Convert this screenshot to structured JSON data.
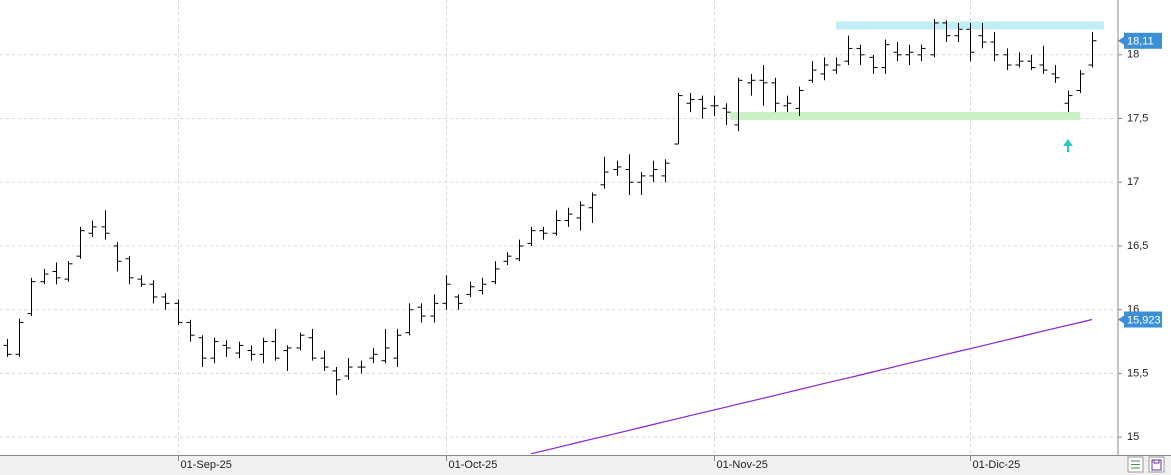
{
  "chart_data": {
    "type": "ohlc",
    "categories": [
      null,
      null,
      null,
      null,
      null,
      null,
      null,
      null,
      null,
      null,
      null,
      null,
      null,
      null,
      "01-Sep-25",
      null,
      null,
      null,
      null,
      null,
      null,
      null,
      null,
      null,
      null,
      null,
      null,
      null,
      null,
      null,
      null,
      null,
      null,
      null,
      null,
      null,
      "01-Oct-25",
      null,
      null,
      null,
      null,
      null,
      null,
      null,
      null,
      null,
      null,
      null,
      null,
      null,
      null,
      null,
      null,
      null,
      null,
      null,
      null,
      null,
      "01-Nov-25",
      null,
      null,
      null,
      null,
      null,
      null,
      null,
      null,
      null,
      null,
      null,
      null,
      null,
      null,
      null,
      null,
      null,
      null,
      null,
      null,
      "01-Dic-25",
      null,
      null,
      null,
      null,
      null,
      null,
      null,
      null,
      null,
      null
    ],
    "ylim": [
      14.86,
      18.43
    ],
    "yticks": [
      15,
      {
        "value": 15.5,
        "label": "15,5"
      },
      16,
      {
        "value": 16.5,
        "label": "16,5"
      },
      17,
      {
        "value": 17.5,
        "label": "17,5"
      },
      18
    ],
    "grid": true,
    "series": [
      {
        "type": "ohlc",
        "color": "#000000",
        "value_label": "18,11",
        "open": [
          15.72,
          15.65,
          15.97,
          16.22,
          16.3,
          16.24,
          16.42,
          16.6,
          16.65,
          16.5,
          16.4,
          16.24,
          16.2,
          16.1,
          16.05,
          15.9,
          15.78,
          15.62,
          15.72,
          15.66,
          15.68,
          15.65,
          15.75,
          15.68,
          15.7,
          15.78,
          15.62,
          15.52,
          15.48,
          15.55,
          15.62,
          15.6,
          15.62,
          15.82,
          16.02,
          15.95,
          16.05,
          16.1,
          16.12,
          16.15,
          16.22,
          16.38,
          16.4,
          16.52,
          16.62,
          16.6,
          16.7,
          16.72,
          16.8,
          16.98,
          17.1,
          17.1,
          17.0,
          17.05,
          17.05,
          17.3,
          17.62,
          17.65,
          17.6,
          17.58,
          17.45,
          17.78,
          17.8,
          17.78,
          17.6,
          17.58,
          17.8,
          17.85,
          17.88,
          17.95,
          18.05,
          17.98,
          17.9,
          18.02,
          18.0,
          18.0,
          18.0,
          18.25,
          18.15,
          18.2,
          18.15,
          18.1,
          18.0,
          17.92,
          17.95,
          17.92,
          17.85,
          17.62,
          17.72,
          17.92
        ],
        "high": [
          15.77,
          15.93,
          16.25,
          16.32,
          16.37,
          16.38,
          16.65,
          16.7,
          16.78,
          16.53,
          16.42,
          16.27,
          16.23,
          16.13,
          16.08,
          15.92,
          15.8,
          15.78,
          15.76,
          15.75,
          15.72,
          15.78,
          15.85,
          15.72,
          15.82,
          15.85,
          15.68,
          15.55,
          15.62,
          15.6,
          15.7,
          15.85,
          15.85,
          16.05,
          16.05,
          16.12,
          16.27,
          16.12,
          16.22,
          16.25,
          16.38,
          16.45,
          16.55,
          16.65,
          16.65,
          16.78,
          16.8,
          16.85,
          16.92,
          17.2,
          17.17,
          17.22,
          17.08,
          17.17,
          17.18,
          17.7,
          17.7,
          17.68,
          17.68,
          17.62,
          17.82,
          17.85,
          17.92,
          17.82,
          17.68,
          17.75,
          17.95,
          17.98,
          17.98,
          18.15,
          18.08,
          18.0,
          18.12,
          18.1,
          18.08,
          18.08,
          18.28,
          18.27,
          18.25,
          18.25,
          18.25,
          18.18,
          18.05,
          18.02,
          18.0,
          18.07,
          17.92,
          17.72,
          17.88,
          18.18
        ],
        "low": [
          15.63,
          15.63,
          15.95,
          16.2,
          16.2,
          16.22,
          16.4,
          16.57,
          16.55,
          16.3,
          16.2,
          16.18,
          16.05,
          16.0,
          15.88,
          15.75,
          15.55,
          15.58,
          15.63,
          15.62,
          15.6,
          15.58,
          15.6,
          15.52,
          15.68,
          15.6,
          15.52,
          15.33,
          15.45,
          15.5,
          15.58,
          15.58,
          15.55,
          15.8,
          15.9,
          15.9,
          16.0,
          16.0,
          16.1,
          16.12,
          16.2,
          16.35,
          16.38,
          16.5,
          16.55,
          16.58,
          16.65,
          16.62,
          16.68,
          16.95,
          17.05,
          16.9,
          16.9,
          17.0,
          17.0,
          17.3,
          17.55,
          17.5,
          17.52,
          17.45,
          17.4,
          17.68,
          17.6,
          17.55,
          17.55,
          17.52,
          17.78,
          17.8,
          17.85,
          17.92,
          17.92,
          17.85,
          17.85,
          17.95,
          17.92,
          17.95,
          17.98,
          18.1,
          18.1,
          17.95,
          18.05,
          17.95,
          17.88,
          17.9,
          17.88,
          17.85,
          17.78,
          17.55,
          17.7,
          17.9
        ],
        "close": [
          15.65,
          15.9,
          16.22,
          16.28,
          16.25,
          16.36,
          16.62,
          16.65,
          16.6,
          16.38,
          16.25,
          16.2,
          16.1,
          16.05,
          15.9,
          15.8,
          15.62,
          15.75,
          15.7,
          15.72,
          15.65,
          15.75,
          15.62,
          15.7,
          15.8,
          15.62,
          15.55,
          15.45,
          15.55,
          15.55,
          15.65,
          15.7,
          15.8,
          16.0,
          15.95,
          16.05,
          16.2,
          16.05,
          16.18,
          16.2,
          16.32,
          16.42,
          16.5,
          16.62,
          16.6,
          16.7,
          16.75,
          16.82,
          16.9,
          17.08,
          17.12,
          17.0,
          17.05,
          17.1,
          17.15,
          17.68,
          17.65,
          17.58,
          17.6,
          17.55,
          17.8,
          17.8,
          17.78,
          17.62,
          17.62,
          17.72,
          17.88,
          17.92,
          17.92,
          18.05,
          18.0,
          17.9,
          18.08,
          18.0,
          18.02,
          18.05,
          18.25,
          18.15,
          18.2,
          18.02,
          18.1,
          18.0,
          17.92,
          17.95,
          17.9,
          17.88,
          17.82,
          17.68,
          17.85,
          18.11
        ]
      },
      {
        "type": "line",
        "color": "#8a1fd6",
        "value_label": "15,923",
        "values": [
          null,
          null,
          null,
          null,
          null,
          null,
          null,
          null,
          null,
          null,
          null,
          null,
          null,
          null,
          null,
          null,
          null,
          null,
          null,
          null,
          null,
          null,
          null,
          null,
          null,
          null,
          null,
          null,
          null,
          null,
          null,
          null,
          null,
          null,
          null,
          null,
          null,
          null,
          null,
          null,
          null,
          null,
          null,
          14.87,
          14.893,
          14.916,
          14.939,
          14.962,
          14.985,
          15.007,
          15.03,
          15.053,
          15.076,
          15.099,
          15.122,
          15.145,
          15.168,
          15.191,
          15.214,
          15.236,
          15.259,
          15.282,
          15.305,
          15.328,
          15.351,
          15.374,
          15.397,
          15.42,
          15.443,
          15.465,
          15.488,
          15.511,
          15.534,
          15.557,
          15.58,
          15.603,
          15.626,
          15.649,
          15.672,
          15.694,
          15.717,
          15.74,
          15.763,
          15.786,
          15.809,
          15.832,
          15.855,
          15.878,
          15.9,
          15.923
        ]
      }
    ],
    "levels": [
      {
        "value": 18.23,
        "color": "#bfeef5"
      },
      {
        "value": 17.52,
        "color": "#c9f2c4"
      }
    ]
  }
}
